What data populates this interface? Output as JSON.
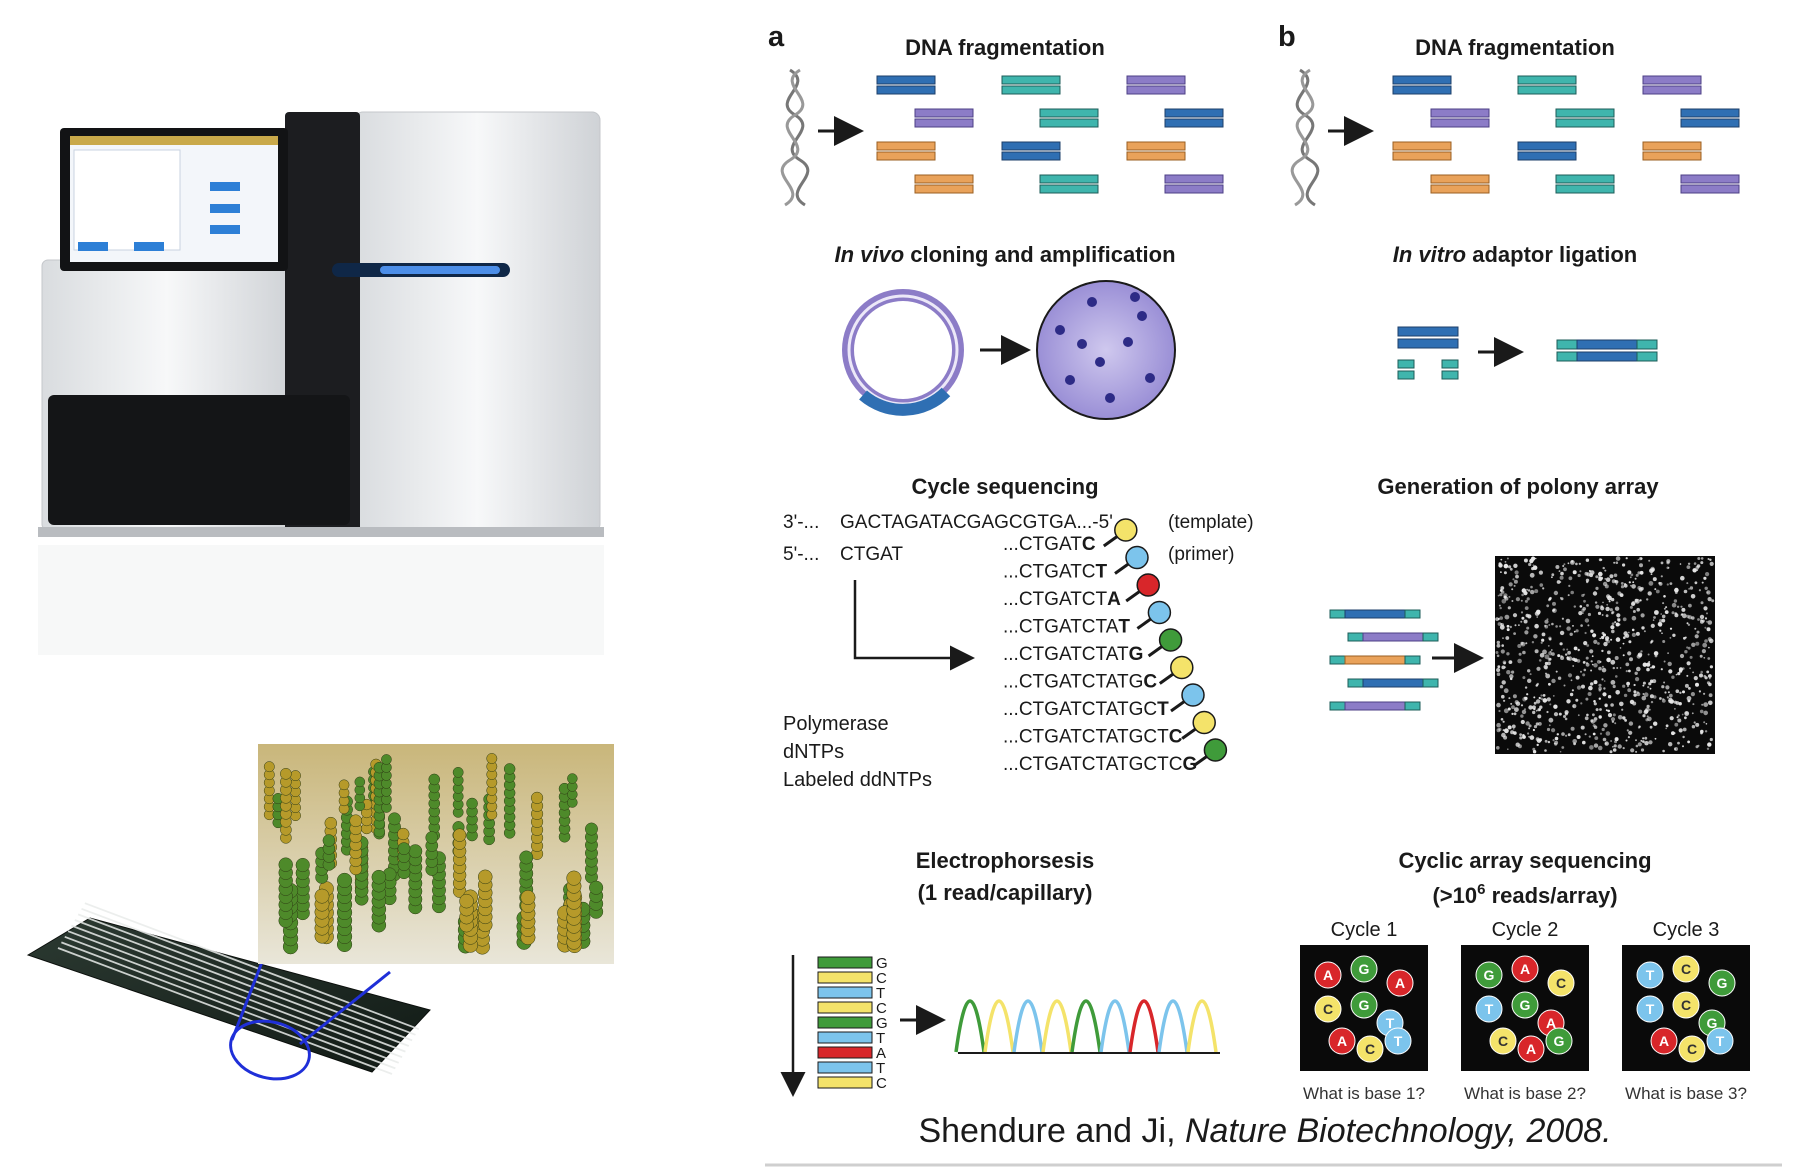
{
  "panel_a_label": "a",
  "panel_b_label": "b",
  "a": {
    "fragmentation": "DNA fragmentation",
    "cloning_italic": "In vivo",
    "cloning_rest": " cloning and amplification",
    "cycle_title": "Cycle sequencing",
    "template_prefix": "3'-...",
    "template_seq": "GACTAGATACGAGCGTGA...-5'",
    "template_note": "(template)",
    "primer_prefix": "5'-...",
    "primer_seq": "CTGAT",
    "primer_note": "(primer)",
    "reagents": [
      "Polymerase",
      "dNTPs",
      "Labeled ddNTPs"
    ],
    "extensions": [
      {
        "base": "...CTGAT",
        "end": "C",
        "color": "#f4e36a"
      },
      {
        "base": "...CTGATC",
        "end": "T",
        "color": "#7cc4ec"
      },
      {
        "base": "...CTGATCT",
        "end": "A",
        "color": "#d8262a"
      },
      {
        "base": "...CTGATCTA",
        "end": "T",
        "color": "#7cc4ec"
      },
      {
        "base": "...CTGATCTAT",
        "end": "G",
        "color": "#3f9b3a"
      },
      {
        "base": "...CTGATCTATG",
        "end": "C",
        "color": "#f4e36a"
      },
      {
        "base": "...CTGATCTATGC",
        "end": "T",
        "color": "#7cc4ec"
      },
      {
        "base": "...CTGATCTATGCT",
        "end": "C",
        "color": "#f4e36a"
      },
      {
        "base": "...CTGATCTATGCTC",
        "end": "G",
        "color": "#3f9b3a"
      }
    ],
    "electro_title": "Electrophorsesis",
    "electro_sub": "(1 read/capillary)",
    "gel_letters": [
      "G",
      "C",
      "T",
      "C",
      "G",
      "T",
      "A",
      "T",
      "C"
    ]
  },
  "b": {
    "fragmentation": "DNA fragmentation",
    "ligation_italic": "In vitro",
    "ligation_rest": " adaptor ligation",
    "polony_title": "Generation of polony array",
    "cyclic_title": "Cyclic array sequencing",
    "cyclic_sub_pre": "(>10",
    "cyclic_sub_sup": "6",
    "cyclic_sub_post": " reads/array)",
    "cycles": [
      {
        "label": "Cycle 1",
        "question": "What is base 1?",
        "nodes": [
          "A",
          "G",
          "A",
          "C",
          "G",
          "T",
          "A",
          "C",
          "T"
        ]
      },
      {
        "label": "Cycle 2",
        "question": "What is base 2?",
        "nodes": [
          "G",
          "A",
          "C",
          "T",
          "G",
          "A",
          "C",
          "A",
          "G"
        ]
      },
      {
        "label": "Cycle 3",
        "question": "What is base 3?",
        "nodes": [
          "T",
          "C",
          "G",
          "T",
          "C",
          "G",
          "A",
          "C",
          "T"
        ]
      }
    ]
  },
  "citation_authors": "Shendure and Ji, ",
  "citation_journal": "Nature Biotechnology, 2008.",
  "colors": {
    "dark_blue": "#2f6fb3",
    "teal": "#3fb5ad",
    "purple": "#8c7cc7",
    "orange": "#e9a25a",
    "yellow": "#f4e36a",
    "light_blue": "#7cc4ec",
    "red": "#d8262a",
    "green": "#3f9b3a"
  }
}
